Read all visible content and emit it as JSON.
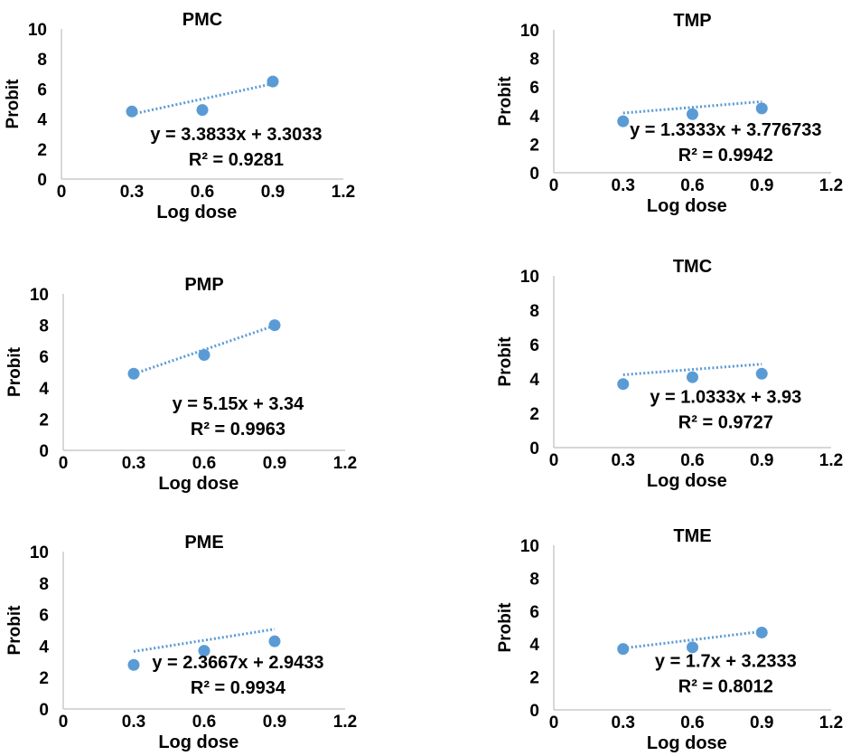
{
  "chart_data": [
    {
      "type": "scatter",
      "title": "PMC",
      "xlabel": "Log dose",
      "ylabel": "Probit",
      "xlim": [
        0,
        1.2
      ],
      "ylim": [
        0,
        10
      ],
      "xticks": [
        "0",
        "0.3",
        "0.6",
        "0.9",
        "1.2"
      ],
      "yticks": [
        "0",
        "2",
        "4",
        "6",
        "8",
        "10"
      ],
      "series": [
        {
          "x": [
            0.3,
            0.6,
            0.9
          ],
          "y": [
            4.5,
            4.6,
            6.5
          ]
        }
      ],
      "trendline": {
        "type": "linear",
        "slope": 3.3833,
        "intercept": 3.3033
      },
      "equation": "y = 3.3833x + 3.3033",
      "r2": "R² = 0.9281",
      "color": "#5b9bd5"
    },
    {
      "type": "scatter",
      "title": "TMP",
      "xlabel": "Log dose",
      "ylabel": "Probit",
      "xlim": [
        0,
        1.2
      ],
      "ylim": [
        0,
        10
      ],
      "xticks": [
        "0",
        "0.3",
        "0.6",
        "0.9",
        "1.2"
      ],
      "yticks": [
        "0",
        "2",
        "4",
        "6",
        "8",
        "10"
      ],
      "series": [
        {
          "x": [
            0.3,
            0.6,
            0.9
          ],
          "y": [
            3.6,
            4.1,
            4.5
          ]
        }
      ],
      "trendline": {
        "type": "linear",
        "slope": 1.3333,
        "intercept": 3.776733
      },
      "equation": "y = 1.3333x + 3.776733",
      "r2": "R² = 0.9942",
      "color": "#5b9bd5"
    },
    {
      "type": "scatter",
      "title": "PMP",
      "xlabel": "Log dose",
      "ylabel": "Probit",
      "xlim": [
        0,
        1.2
      ],
      "ylim": [
        0,
        10
      ],
      "xticks": [
        "0",
        "0.3",
        "0.6",
        "0.9",
        "1.2"
      ],
      "yticks": [
        "0",
        "2",
        "4",
        "6",
        "8",
        "10"
      ],
      "series": [
        {
          "x": [
            0.3,
            0.6,
            0.9
          ],
          "y": [
            4.9,
            6.1,
            8.0
          ]
        }
      ],
      "trendline": {
        "type": "linear",
        "slope": 5.15,
        "intercept": 3.34
      },
      "equation": "y = 5.15x + 3.34",
      "r2": "R² = 0.9963",
      "color": "#5b9bd5"
    },
    {
      "type": "scatter",
      "title": "TMC",
      "xlabel": "Log dose",
      "ylabel": "Probit",
      "xlim": [
        0,
        1.2
      ],
      "ylim": [
        0,
        10
      ],
      "xticks": [
        "0",
        "0.3",
        "0.6",
        "0.9",
        "1.2"
      ],
      "yticks": [
        "0",
        "2",
        "4",
        "6",
        "8",
        "10"
      ],
      "series": [
        {
          "x": [
            0.3,
            0.6,
            0.9
          ],
          "y": [
            3.7,
            4.1,
            4.3
          ]
        }
      ],
      "trendline": {
        "type": "linear",
        "slope": 1.0333,
        "intercept": 3.93
      },
      "equation": "y = 1.0333x + 3.93",
      "r2": "R² = 0.9727",
      "color": "#5b9bd5"
    },
    {
      "type": "scatter",
      "title": "PME",
      "xlabel": "Log dose",
      "ylabel": "Probit",
      "xlim": [
        0,
        1.2
      ],
      "ylim": [
        0,
        10
      ],
      "xticks": [
        "0",
        "0.3",
        "0.6",
        "0.9",
        "1.2"
      ],
      "yticks": [
        "0",
        "2",
        "4",
        "6",
        "8",
        "10"
      ],
      "series": [
        {
          "x": [
            0.3,
            0.6,
            0.9
          ],
          "y": [
            2.8,
            3.7,
            4.3
          ]
        }
      ],
      "trendline": {
        "type": "linear",
        "slope": 2.3667,
        "intercept": 2.9433
      },
      "equation": "y = 2.3667x + 2.9433",
      "r2": "R² = 0.9934",
      "color": "#5b9bd5"
    },
    {
      "type": "scatter",
      "title": "TME",
      "xlabel": "Log dose",
      "ylabel": "Probit",
      "xlim": [
        0,
        1.2
      ],
      "ylim": [
        0,
        10
      ],
      "xticks": [
        "0",
        "0.3",
        "0.6",
        "0.9",
        "1.2"
      ],
      "yticks": [
        "0",
        "2",
        "4",
        "6",
        "8",
        "10"
      ],
      "series": [
        {
          "x": [
            0.3,
            0.6,
            0.9
          ],
          "y": [
            3.7,
            3.8,
            4.7
          ]
        }
      ],
      "trendline": {
        "type": "linear",
        "slope": 1.7,
        "intercept": 3.2333
      },
      "equation": "y = 1.7x + 3.2333",
      "r2": "R² = 0.8012",
      "color": "#5b9bd5"
    }
  ]
}
